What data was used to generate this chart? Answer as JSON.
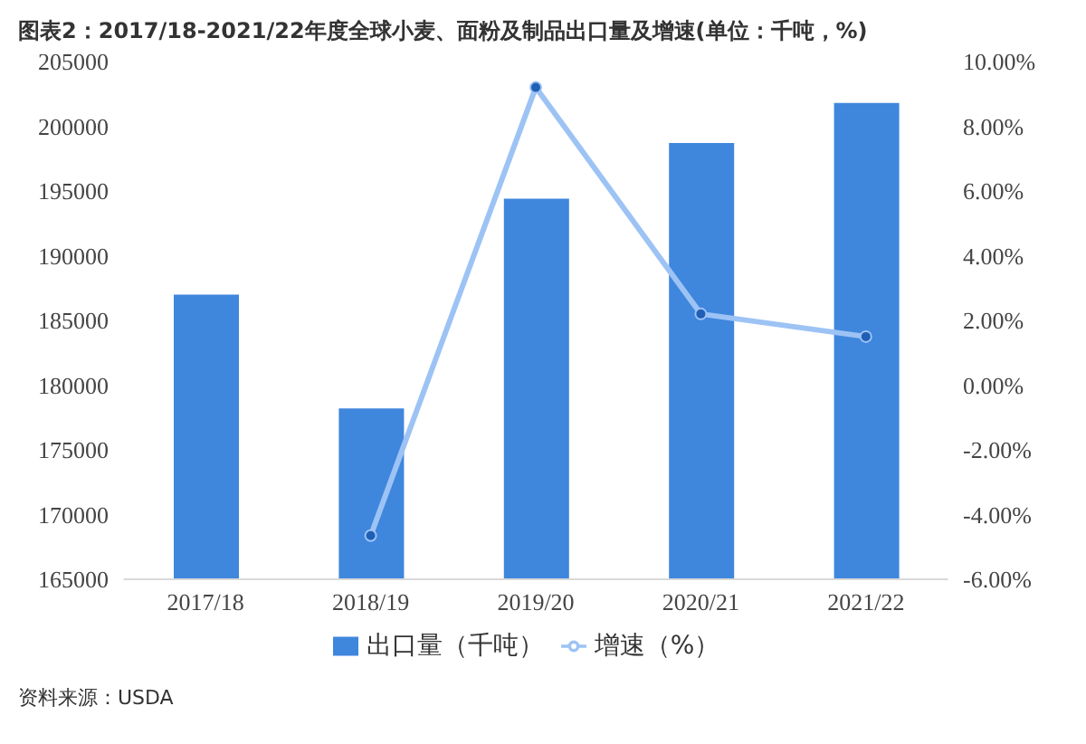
{
  "chart_data": {
    "type": "bar",
    "title": "图表2：2017/18-2021/22年度全球小麦、面粉及制品出口量及增速(单位：千吨，%)",
    "categories": [
      "2017/18",
      "2018/19",
      "2019/20",
      "2020/21",
      "2021/22"
    ],
    "series": [
      {
        "name": "出口量（千吨）",
        "color": "#3f86dd",
        "values": [
          187000,
          178200,
          194400,
          198700,
          201800
        ]
      },
      {
        "name": "增速（%）",
        "type": "line",
        "axis": "y2",
        "color": "#9dc3f5",
        "values": [
          null,
          -4.65,
          9.2,
          2.2,
          1.5
        ]
      }
    ],
    "ylim": [
      165000,
      205000
    ],
    "yticks": [
      165000,
      170000,
      175000,
      180000,
      185000,
      190000,
      195000,
      200000,
      205000
    ],
    "y2lim": [
      -6,
      10
    ],
    "y2ticks": [
      {
        "value": -6,
        "label": "-6.00%"
      },
      {
        "value": -4,
        "label": "-4.00%"
      },
      {
        "value": -2,
        "label": "-2.00%"
      },
      {
        "value": 0,
        "label": "0.00%"
      },
      {
        "value": 2,
        "label": "2.00%"
      },
      {
        "value": 4,
        "label": "4.00%"
      },
      {
        "value": 6,
        "label": "6.00%"
      },
      {
        "value": 8,
        "label": "8.00%"
      },
      {
        "value": 10,
        "label": "10.00%"
      }
    ],
    "marker": "circle",
    "legend": "bottom",
    "grid": false,
    "annotations": [
      "资料来源：USDA"
    ]
  }
}
